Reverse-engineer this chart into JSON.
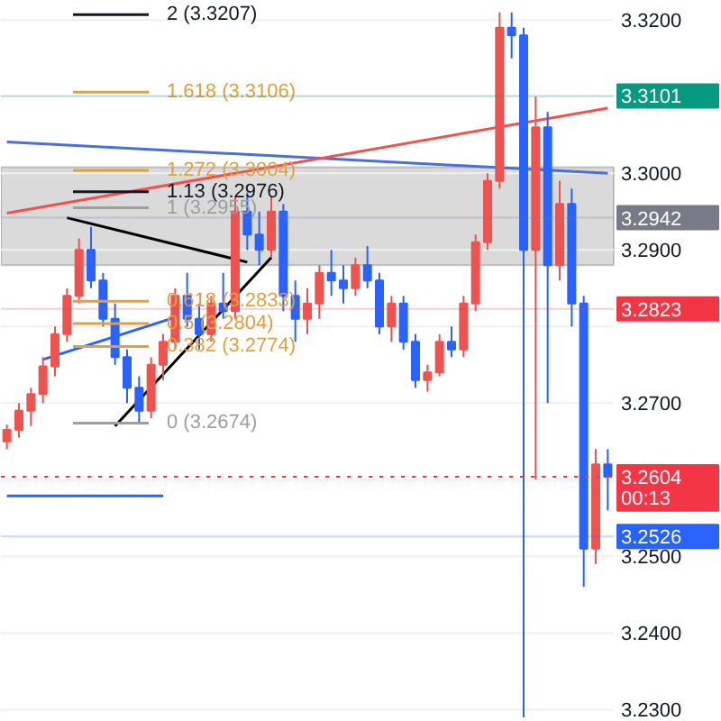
{
  "chart_data": {
    "type": "candlestick",
    "categories": [
      null,
      null,
      null,
      null,
      null,
      null,
      null,
      null,
      null,
      null,
      null,
      null,
      null,
      null,
      null,
      null,
      null,
      null,
      null,
      null,
      null,
      null,
      null,
      null,
      null,
      null,
      null,
      null,
      null,
      null,
      null,
      null,
      null,
      null,
      null,
      null,
      null,
      null,
      null,
      null,
      null,
      null,
      null,
      null,
      null,
      null,
      null,
      null,
      null,
      null,
      null
    ],
    "ohlc": [
      [
        3.265,
        3.2672,
        3.264,
        3.2665
      ],
      [
        3.2665,
        3.27,
        3.2655,
        3.269
      ],
      [
        3.269,
        3.272,
        3.267,
        3.2712
      ],
      [
        3.2712,
        3.276,
        3.27,
        3.2748
      ],
      [
        3.2748,
        3.28,
        3.2735,
        3.279
      ],
      [
        3.279,
        3.285,
        3.278,
        3.284
      ],
      [
        3.284,
        3.2915,
        3.283,
        3.29
      ],
      [
        3.29,
        3.293,
        3.285,
        3.286
      ],
      [
        3.286,
        3.287,
        3.28,
        3.281
      ],
      [
        3.281,
        3.283,
        3.275,
        3.276
      ],
      [
        3.276,
        3.277,
        3.27,
        3.272
      ],
      [
        3.272,
        3.2735,
        3.2674,
        3.269
      ],
      [
        3.269,
        3.276,
        3.268,
        3.275
      ],
      [
        3.275,
        3.279,
        3.273,
        3.278
      ],
      [
        3.278,
        3.285,
        3.277,
        3.284
      ],
      [
        3.284,
        3.287,
        3.28,
        3.281
      ],
      [
        3.281,
        3.283,
        3.277,
        3.279
      ],
      [
        3.279,
        3.284,
        3.278,
        3.283
      ],
      [
        3.283,
        3.287,
        3.281,
        3.282
      ],
      [
        3.282,
        3.297,
        3.281,
        3.295
      ],
      [
        3.295,
        3.2975,
        3.29,
        3.292
      ],
      [
        3.292,
        3.295,
        3.288,
        3.29
      ],
      [
        3.29,
        3.297,
        3.289,
        3.295
      ],
      [
        3.295,
        3.296,
        3.282,
        3.284
      ],
      [
        3.284,
        3.286,
        3.278,
        3.281
      ],
      [
        3.281,
        3.285,
        3.279,
        3.283
      ],
      [
        3.283,
        3.288,
        3.281,
        3.287
      ],
      [
        3.287,
        3.29,
        3.284,
        3.286
      ],
      [
        3.286,
        3.288,
        3.283,
        3.285
      ],
      [
        3.285,
        3.289,
        3.284,
        3.288
      ],
      [
        3.288,
        3.2905,
        3.285,
        3.286
      ],
      [
        3.286,
        3.287,
        3.279,
        3.28
      ],
      [
        3.28,
        3.284,
        3.278,
        3.283
      ],
      [
        3.283,
        3.284,
        3.277,
        3.278
      ],
      [
        3.278,
        3.279,
        3.272,
        3.273
      ],
      [
        3.273,
        3.275,
        3.2715,
        3.274
      ],
      [
        3.274,
        3.279,
        3.2735,
        3.278
      ],
      [
        3.278,
        3.28,
        3.276,
        3.277
      ],
      [
        3.277,
        3.284,
        3.276,
        3.283
      ],
      [
        3.283,
        3.292,
        3.282,
        3.291
      ],
      [
        3.291,
        3.3,
        3.29,
        3.299
      ],
      [
        3.299,
        3.321,
        3.298,
        3.319
      ],
      [
        3.319,
        3.321,
        3.315,
        3.318
      ],
      [
        3.318,
        3.319,
        3.229,
        3.29
      ],
      [
        3.29,
        3.31,
        3.26,
        3.306
      ],
      [
        3.306,
        3.308,
        3.27,
        3.288
      ],
      [
        3.288,
        3.299,
        3.286,
        3.296
      ],
      [
        3.296,
        3.298,
        3.28,
        3.283
      ],
      [
        3.283,
        3.284,
        3.246,
        3.251
      ],
      [
        3.251,
        3.264,
        3.249,
        3.262
      ],
      [
        3.262,
        3.264,
        3.256,
        3.2604
      ]
    ],
    "colors": [
      "#ef5350",
      "#ef5350",
      "#ef5350",
      "#ef5350",
      "#ef5350",
      "#ef5350",
      "#ef5350",
      "#2962ff",
      "#2962ff",
      "#2962ff",
      "#2962ff",
      "#2962ff",
      "#ef5350",
      "#ef5350",
      "#ef5350",
      "#2962ff",
      "#2962ff",
      "#ef5350",
      "#2962ff",
      "#ef5350",
      "#2962ff",
      "#2962ff",
      "#ef5350",
      "#2962ff",
      "#2962ff",
      "#ef5350",
      "#ef5350",
      "#2962ff",
      "#2962ff",
      "#ef5350",
      "#2962ff",
      "#2962ff",
      "#ef5350",
      "#2962ff",
      "#2962ff",
      "#ef5350",
      "#ef5350",
      "#2962ff",
      "#ef5350",
      "#ef5350",
      "#ef5350",
      "#ef5350",
      "#2962ff",
      "#2962ff",
      "#ef5350",
      "#2962ff",
      "#ef5350",
      "#2962ff",
      "#2962ff",
      "#ef5350",
      "#2962ff"
    ],
    "series": [
      {
        "type": "line",
        "color": "#4a6fd8",
        "values": [
          3.3041,
          null,
          null,
          null,
          null,
          null,
          null,
          null,
          null,
          null,
          null,
          null,
          null,
          null,
          null,
          null,
          null,
          null,
          null,
          null,
          null,
          null,
          null,
          null,
          null,
          null,
          null,
          null,
          null,
          null,
          null,
          null,
          null,
          null,
          null,
          null,
          null,
          null,
          null,
          null,
          null,
          null,
          null,
          null,
          null,
          null,
          null,
          null,
          null,
          null,
          3.3
        ]
      },
      {
        "type": "line",
        "color": "#ef5350",
        "values": [
          3.2948,
          null,
          null,
          null,
          null,
          null,
          null,
          null,
          null,
          null,
          null,
          null,
          null,
          null,
          null,
          null,
          null,
          null,
          null,
          null,
          null,
          null,
          null,
          null,
          null,
          null,
          null,
          null,
          null,
          null,
          null,
          null,
          null,
          null,
          null,
          null,
          null,
          null,
          null,
          null,
          null,
          null,
          null,
          null,
          null,
          null,
          null,
          null,
          null,
          null,
          3.3085
        ]
      },
      {
        "type": "line",
        "color": "#000000",
        "values": [
          null,
          null,
          null,
          null,
          null,
          3.2942,
          null,
          null,
          null,
          null,
          null,
          null,
          null,
          null,
          null,
          null,
          null,
          null,
          null,
          null,
          3.2884,
          null,
          null,
          null,
          null,
          null,
          null,
          null,
          null,
          null,
          null,
          null,
          null,
          null,
          null,
          null,
          null,
          null,
          null,
          null,
          null,
          null,
          null,
          null,
          null,
          null,
          null,
          null,
          null,
          null,
          null
        ]
      },
      {
        "type": "line",
        "color": "#000000",
        "values": [
          null,
          null,
          null,
          null,
          null,
          null,
          null,
          null,
          null,
          3.267,
          null,
          null,
          null,
          null,
          null,
          null,
          null,
          null,
          null,
          null,
          null,
          null,
          3.289,
          null,
          null,
          null,
          null,
          null,
          null,
          null,
          null,
          null,
          null,
          null,
          null,
          null,
          null,
          null,
          null,
          null,
          null,
          null,
          null,
          null,
          null,
          null,
          null,
          null,
          null,
          null,
          null
        ]
      },
      {
        "type": "line",
        "color": "#2962ff",
        "values": [
          null,
          null,
          null,
          3.2757,
          null,
          null,
          null,
          null,
          null,
          null,
          null,
          null,
          null,
          null,
          3.2812,
          null,
          null,
          null,
          null,
          null,
          null,
          null,
          null,
          null,
          null,
          null,
          null,
          null,
          null,
          null,
          null,
          null,
          null,
          null,
          null,
          null,
          null,
          null,
          null,
          null,
          null,
          null,
          null,
          null,
          null,
          null,
          null,
          null,
          null,
          null,
          null
        ]
      },
      {
        "type": "line",
        "color": "#2962ff",
        "values": [
          3.2579,
          null,
          null,
          null,
          null,
          null,
          null,
          null,
          null,
          null,
          null,
          null,
          null,
          3.2579,
          null,
          null,
          null,
          null,
          null,
          null,
          null,
          null,
          null,
          null,
          null,
          null,
          null,
          null,
          null,
          null,
          null,
          null,
          null,
          null,
          null,
          null,
          null,
          null,
          null,
          null,
          null,
          null,
          null,
          null,
          null,
          null,
          null,
          null,
          null,
          null,
          null
        ]
      }
    ],
    "bands": [
      {
        "axis": "y",
        "from": 3.288,
        "to": 3.3008,
        "color": "#d1d1d1"
      }
    ],
    "ref_lines": [
      {
        "axis": "y",
        "value": 3.3207,
        "label": "2 (3.3207)",
        "color": "#131722",
        "line_style": "solid"
      },
      {
        "axis": "y",
        "value": 3.3106,
        "label": "1.618 (3.3106)",
        "color": "#e0a040",
        "line_style": "solid"
      },
      {
        "axis": "y",
        "value": 3.3004,
        "label": "1.272 (3.3004)",
        "color": "#e0a040",
        "line_style": "solid"
      },
      {
        "axis": "y",
        "value": 3.2976,
        "label": "1.13 (3.2976)",
        "color": "#131722",
        "line_style": "solid"
      },
      {
        "axis": "y",
        "value": 3.2955,
        "label": "1 (3.2955)",
        "color": "#9e9e9e",
        "line_style": "solid"
      },
      {
        "axis": "y",
        "value": 3.2833,
        "label": "0.618 (3.2833)",
        "color": "#e0a040",
        "line_style": "solid"
      },
      {
        "axis": "y",
        "value": 3.2804,
        "label": "0.5 (3.2804)",
        "color": "#e0a040",
        "line_style": "solid"
      },
      {
        "axis": "y",
        "value": 3.2774,
        "label": "0.382 (3.2774)",
        "color": "#e0a040",
        "line_style": "solid"
      },
      {
        "axis": "y",
        "value": 3.2674,
        "label": "0 (3.2674)",
        "color": "#9e9e9e",
        "line_style": "solid"
      },
      {
        "axis": "y",
        "value": 3.3101,
        "label": "3.3101",
        "color": "#089981"
      },
      {
        "axis": "y",
        "value": 3.2942,
        "label": "3.2942",
        "color": "#787b86"
      },
      {
        "axis": "y",
        "value": 3.2823,
        "label": "3.2823",
        "color": "#f23645"
      },
      {
        "axis": "y",
        "value": 3.2604,
        "label": "3.2604 00:13",
        "color": "#f23645",
        "line_style": "dotted"
      },
      {
        "axis": "y",
        "value": 3.2526,
        "label": "3.2526",
        "color": "#2962ff"
      }
    ],
    "ylim": [
      3.2284,
      3.3225
    ],
    "yticks": [
      {
        "value": 3.23,
        "label": "3.2300"
      },
      {
        "value": 3.24,
        "label": "3.2400"
      },
      {
        "value": 3.25,
        "label": "3.2500"
      },
      {
        "value": 3.26,
        "label": null
      },
      {
        "value": 3.27,
        "label": "3.2700"
      },
      {
        "value": 3.28,
        "label": null
      },
      {
        "value": 3.29,
        "label": "3.2900"
      },
      {
        "value": 3.3,
        "label": "3.3000"
      },
      {
        "value": 3.31,
        "label": null
      },
      {
        "value": 3.32,
        "label": "3.3200"
      }
    ],
    "tick_labels": "y",
    "grid": "y"
  }
}
